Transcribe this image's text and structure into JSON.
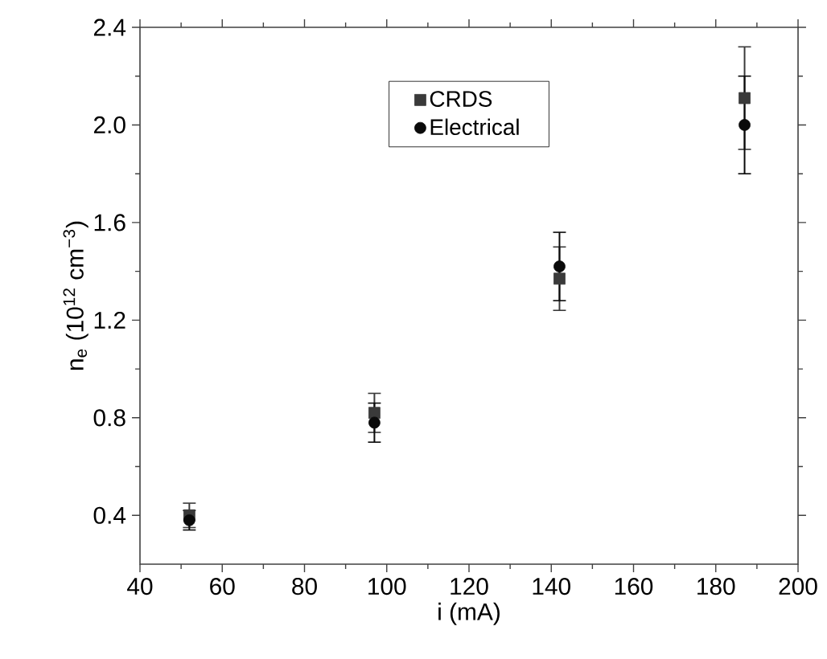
{
  "chart_data": {
    "type": "scatter",
    "xlabel": "i (mA)",
    "ylabel": "n$_{e}$ (10$^{12}$ cm$^{−3}$)",
    "x": [
      52,
      97,
      142,
      187
    ],
    "series": [
      {
        "name": "CRDS",
        "color": "#3a3a3a",
        "marker": "square",
        "values": [
          0.4,
          0.82,
          1.37,
          2.11
        ],
        "errors": [
          0.05,
          0.08,
          0.13,
          0.21
        ]
      },
      {
        "name": "Electrical",
        "color": "#0a0a0a",
        "marker": "circle",
        "values": [
          0.38,
          0.78,
          1.42,
          2.0
        ],
        "errors": [
          0.04,
          0.08,
          0.14,
          0.2
        ]
      }
    ],
    "xlim": [
      40,
      200
    ],
    "ylim": [
      0.2,
      2.4
    ],
    "xticks": [
      40,
      60,
      80,
      100,
      120,
      140,
      160,
      180,
      200
    ],
    "yticks": [
      0.4,
      0.8,
      1.2,
      1.6,
      {
        "value": 2.0,
        "label": "2.0"
      },
      2.4
    ],
    "grid": false,
    "legend": "top"
  }
}
